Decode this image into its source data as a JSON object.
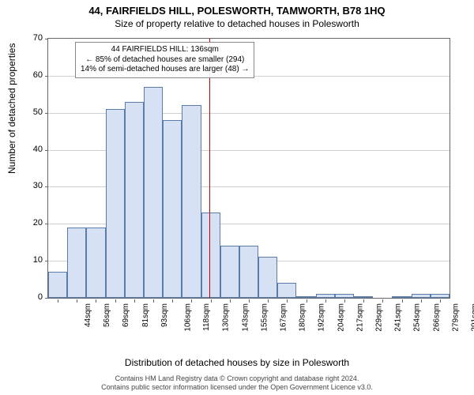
{
  "title_main": "44, FAIRFIELDS HILL, POLESWORTH, TAMWORTH, B78 1HQ",
  "title_sub": "Size of property relative to detached houses in Polesworth",
  "ylabel": "Number of detached properties",
  "xlabel": "Distribution of detached houses by size in Polesworth",
  "footer_line1": "Contains HM Land Registry data © Crown copyright and database right 2024.",
  "footer_line2": "Contains public sector information licensed under the Open Government Licence v3.0.",
  "legend": {
    "line1": "44 FAIRFIELDS HILL: 136sqm",
    "line2": "← 85% of detached houses are smaller (294)",
    "line3": "14% of semi-detached houses are larger (48) →"
  },
  "chart": {
    "type": "histogram",
    "ylim": [
      0,
      70
    ],
    "yticks": [
      0,
      10,
      20,
      30,
      40,
      50,
      60,
      70
    ],
    "bar_fill": "#d6e2f3",
    "bar_stroke": "#5a7ca8",
    "grid_color": "#d0d0d0",
    "background": "#ffffff",
    "ref_line_color": "#cc0000",
    "ref_line_x": 136,
    "x_start": 38,
    "x_step": 12.35,
    "bar_count": 21,
    "categories": [
      "44sqm",
      "56sqm",
      "69sqm",
      "81sqm",
      "93sqm",
      "106sqm",
      "118sqm",
      "130sqm",
      "143sqm",
      "155sqm",
      "167sqm",
      "180sqm",
      "192sqm",
      "204sqm",
      "217sqm",
      "229sqm",
      "241sqm",
      "254sqm",
      "266sqm",
      "279sqm",
      "291sqm"
    ],
    "values": [
      7,
      19,
      19,
      51,
      53,
      57,
      48,
      52,
      23,
      14,
      14,
      11,
      4,
      0.4,
      1,
      1,
      0.4,
      0,
      0.4,
      1,
      1
    ]
  }
}
